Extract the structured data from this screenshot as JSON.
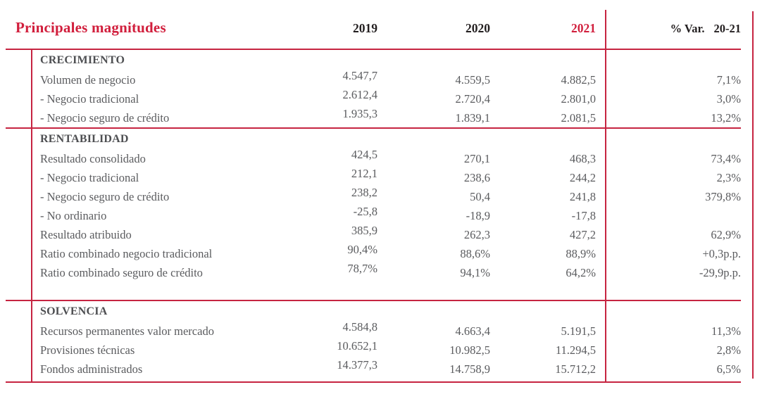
{
  "title": "Principales magnitudes",
  "colors": {
    "accent_red": "#d11e3c",
    "line_red": "#c62441",
    "body_text": "#5a5b5e",
    "section_heading": "#4e4f52",
    "header_black": "#231f20"
  },
  "columns": {
    "y2019": "2019",
    "y2020": "2020",
    "y2021": "2021",
    "var_label": "% Var.",
    "var_period": "20-21"
  },
  "sections": [
    {
      "name": "CRECIMIENTO",
      "rows": [
        {
          "label": "Volumen de negocio",
          "y2019": "4.547,7",
          "y2020": "4.559,5",
          "y2021": "4.882,5",
          "var": "7,1%"
        },
        {
          "label": "- Negocio tradicional",
          "y2019": "2.612,4",
          "y2020": "2.720,4",
          "y2021": "2.801,0",
          "var": "3,0%"
        },
        {
          "label": "- Negocio seguro de crédito",
          "y2019": "1.935,3",
          "y2020": "1.839,1",
          "y2021": "2.081,5",
          "var": "13,2%"
        }
      ]
    },
    {
      "name": "RENTABILIDAD",
      "rows": [
        {
          "label": "Resultado consolidado",
          "y2019": "424,5",
          "y2020": "270,1",
          "y2021": "468,3",
          "var": "73,4%"
        },
        {
          "label": "- Negocio tradicional",
          "y2019": "212,1",
          "y2020": "238,6",
          "y2021": "244,2",
          "var": "2,3%"
        },
        {
          "label": "- Negocio seguro de crédito",
          "y2019": "238,2",
          "y2020": "50,4",
          "y2021": "241,8",
          "var": "379,8%"
        },
        {
          "label": "- No ordinario",
          "y2019": "-25,8",
          "y2020": "-18,9",
          "y2021": "-17,8",
          "var": ""
        },
        {
          "label": "Resultado atribuido",
          "y2019": "385,9",
          "y2020": "262,3",
          "y2021": "427,2",
          "var": "62,9%"
        },
        {
          "label": "Ratio combinado negocio tradicional",
          "y2019": "90,4%",
          "y2020": "88,6%",
          "y2021": "88,9%",
          "var": "+0,3p.p."
        },
        {
          "label": "Ratio combinado seguro de crédito",
          "y2019": "78,7%",
          "y2020": "94,1%",
          "y2021": "64,2%",
          "var": "-29,9p.p."
        }
      ]
    },
    {
      "name": "SOLVENCIA",
      "rows": [
        {
          "label": "Recursos permanentes valor mercado",
          "y2019": "4.584,8",
          "y2020": "4.663,4",
          "y2021": "5.191,5",
          "var": "11,3%"
        },
        {
          "label": "Provisiones técnicas",
          "y2019": "10.652,1",
          "y2020": "10.982,5",
          "y2021": "11.294,5",
          "var": "2,8%"
        },
        {
          "label": "Fondos administrados",
          "y2019": "14.377,3",
          "y2020": "14.758,9",
          "y2021": "15.712,2",
          "var": "6,5%"
        }
      ]
    }
  ]
}
